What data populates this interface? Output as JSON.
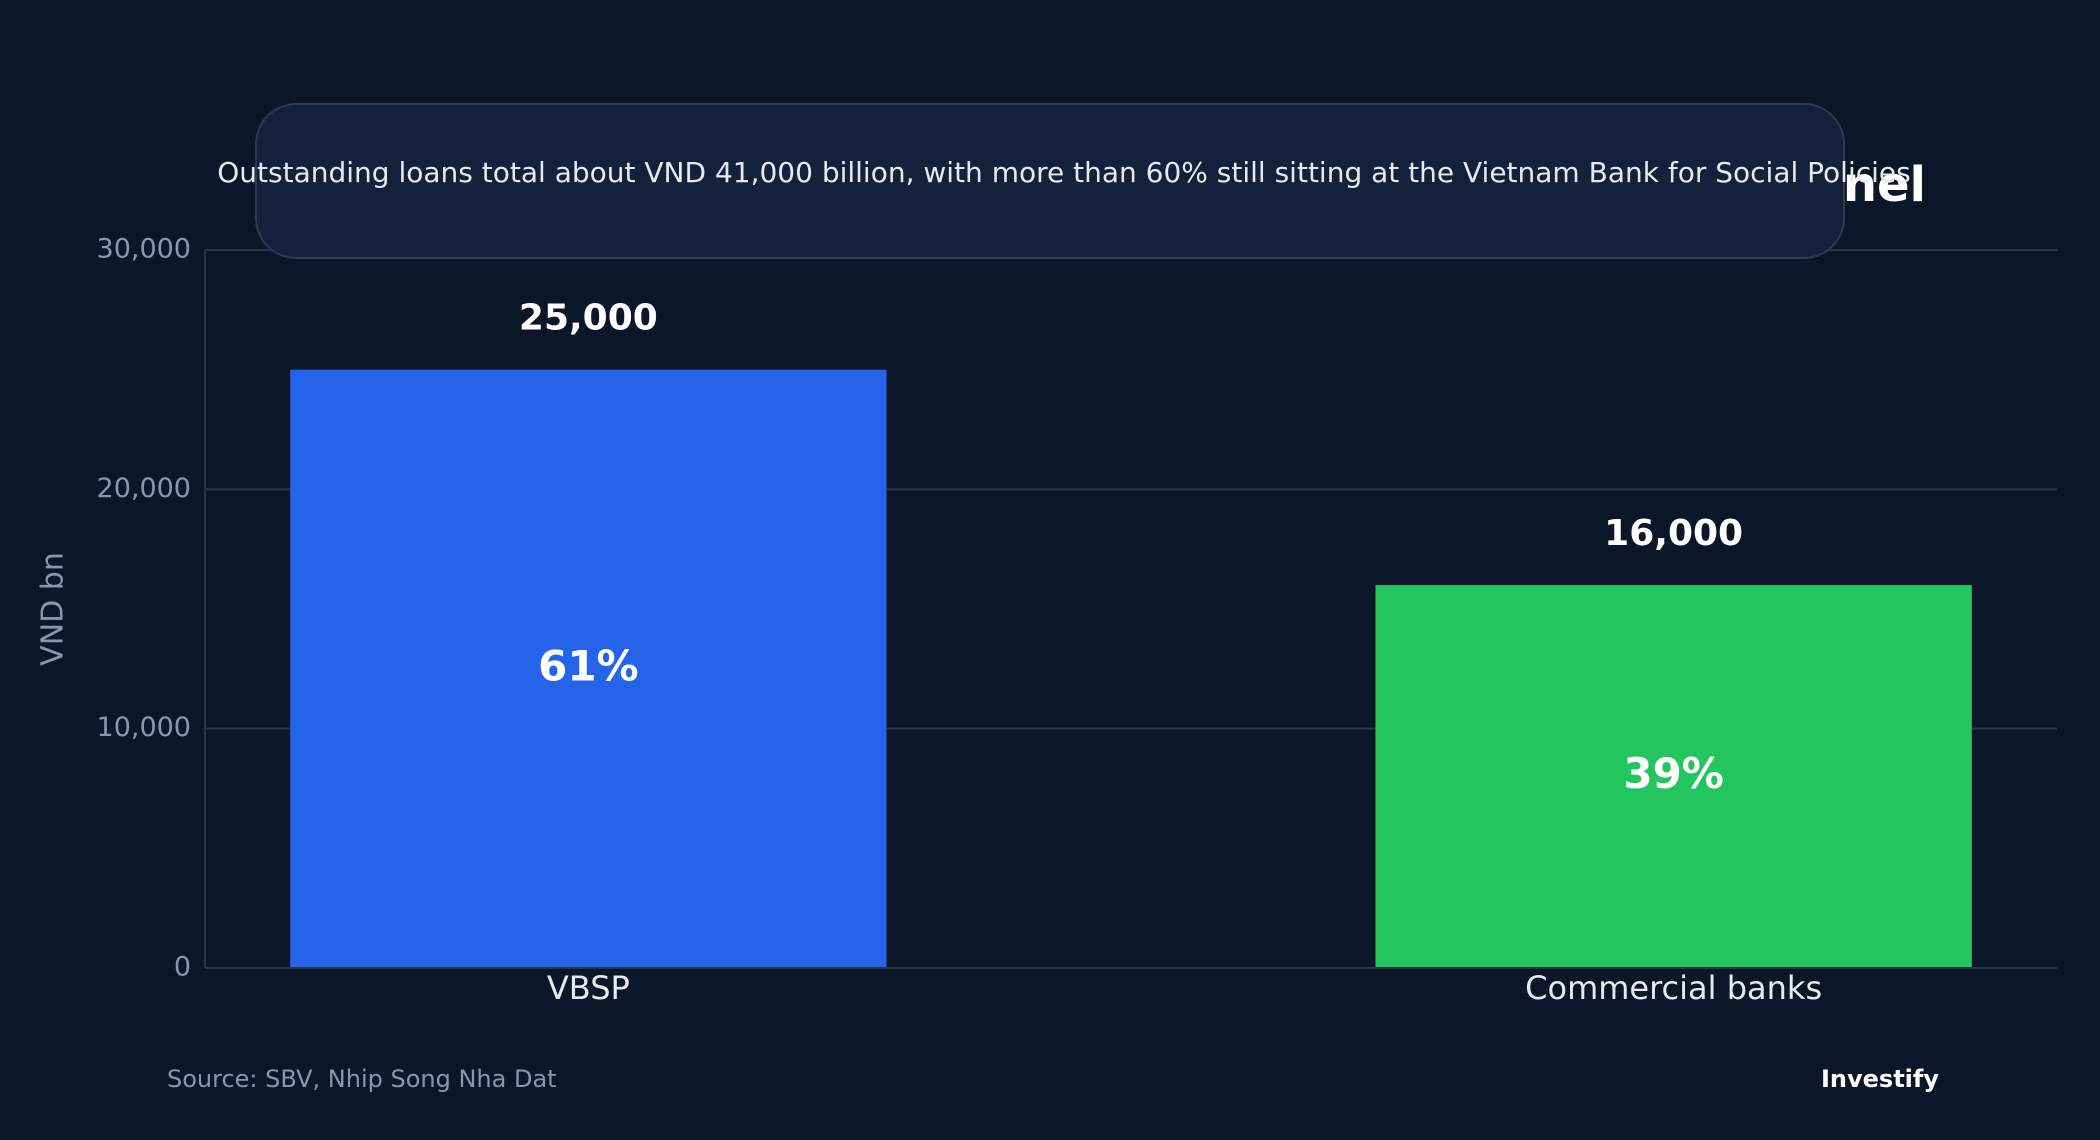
{
  "chart_data": {
    "type": "bar",
    "title": "nel",
    "tooltip": "Outstanding loans total about VND 41,000 billion, with more than 60% still sitting at the Vietnam Bank for Social Policies",
    "y_label": "VND bn",
    "categories": [
      "VBSP",
      "Commercial banks"
    ],
    "values": [
      25000,
      16000
    ],
    "value_labels": [
      "25,000",
      "16,000"
    ],
    "shares": {
      "values": [
        61,
        39
      ],
      "labels": [
        "61%",
        "39%"
      ]
    },
    "colors": [
      "#2563eb",
      "#22c55e"
    ],
    "ylim": [
      0,
      30000
    ],
    "yticks": [
      0,
      {
        "value": 10000,
        "label": "10,000"
      },
      {
        "value": 20000,
        "label": "20,000"
      },
      {
        "value": 30000,
        "label": "30,000"
      }
    ],
    "grid": true,
    "source": "Source: SBV, Nhip Song Nha Dat",
    "brand": "Investify"
  }
}
